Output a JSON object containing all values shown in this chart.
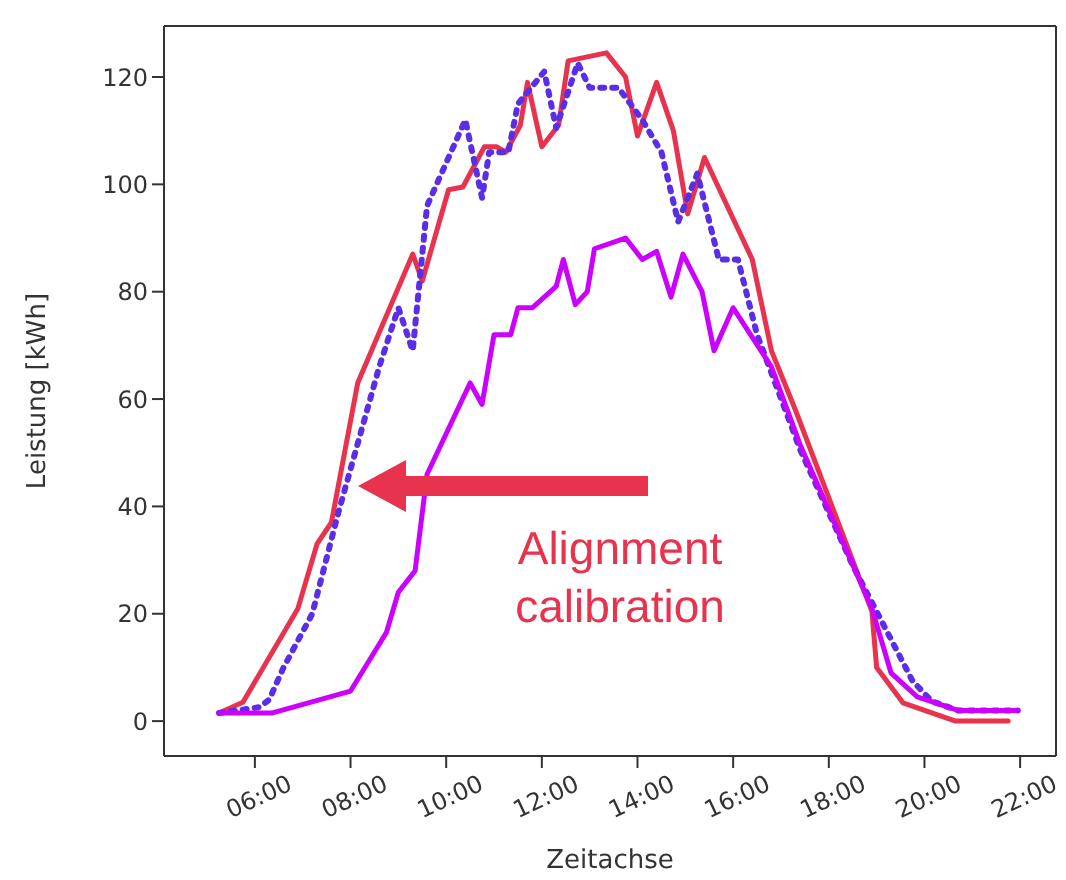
{
  "chart_data": {
    "type": "line",
    "xlabel": "Zeitachse",
    "ylabel": "Leistung [kWh]",
    "xlim": [
      4.1,
      22.75
    ],
    "ylim": [
      -6.5,
      129.5
    ],
    "xticks": [
      {
        "value": 6,
        "label": "06:00"
      },
      {
        "value": 8,
        "label": "08:00"
      },
      {
        "value": 10,
        "label": "10:00"
      },
      {
        "value": 12,
        "label": "12:00"
      },
      {
        "value": 14,
        "label": "14:00"
      },
      {
        "value": 16,
        "label": "16:00"
      },
      {
        "value": 18,
        "label": "18:00"
      },
      {
        "value": 20,
        "label": "20:00"
      },
      {
        "value": 22,
        "label": "22:00"
      }
    ],
    "yticks": [
      0,
      20,
      40,
      60,
      80,
      100,
      120
    ],
    "marker": "none",
    "series": [
      {
        "color": "#e8334f",
        "line_style": "solid",
        "x": [
          5.25,
          5.75,
          6.9,
          7.3,
          7.6,
          8.15,
          9.3,
          9.5,
          10.05,
          10.35,
          10.8,
          11.05,
          11.25,
          11.55,
          11.7,
          12.0,
          12.35,
          12.55,
          13.35,
          13.75,
          14.0,
          14.4,
          14.75,
          15.05,
          15.4,
          16.4,
          16.8,
          17.3,
          18.9,
          19.0,
          19.55,
          20.65,
          21.75
        ],
        "values": [
          1.5,
          3.5,
          21,
          33,
          37,
          63,
          87,
          82,
          99,
          99.5,
          107,
          107,
          106,
          111,
          119,
          107,
          111,
          123,
          124.5,
          120,
          109,
          119,
          110,
          94.5,
          105,
          86,
          69,
          58,
          20.5,
          10,
          3.4,
          0,
          0
        ]
      },
      {
        "color": "#5a2ee6",
        "line_style": "dotted",
        "x": [
          5.25,
          6.1,
          6.3,
          6.6,
          7.2,
          7.75,
          8.6,
          9.0,
          9.3,
          9.6,
          10.4,
          10.75,
          10.9,
          11.3,
          11.5,
          12.05,
          12.3,
          12.75,
          13.0,
          13.6,
          14.1,
          14.5,
          14.85,
          15.25,
          15.7,
          16.1,
          16.5,
          17.4,
          18.5,
          19.75,
          20.15,
          20.7,
          21.95
        ],
        "values": [
          1.5,
          2.6,
          4,
          10,
          20,
          39,
          66,
          77,
          69,
          96,
          112,
          97.5,
          106,
          106,
          115,
          121,
          110.5,
          122.6,
          118,
          118,
          112,
          106,
          93,
          102,
          86,
          86,
          72,
          50.6,
          29,
          7.5,
          3.7,
          2,
          2
        ]
      },
      {
        "color": "#cc00ff",
        "line_style": "solid",
        "x": [
          5.25,
          6.35,
          8.0,
          8.75,
          9.0,
          9.35,
          9.6,
          10.5,
          10.75,
          11.0,
          11.35,
          11.5,
          11.8,
          12.3,
          12.45,
          12.7,
          12.95,
          13.1,
          13.75,
          14.1,
          14.4,
          14.7,
          14.95,
          15.35,
          15.6,
          16.0,
          16.8,
          17.4,
          18.9,
          19.3,
          19.85,
          20.7,
          21.95
        ],
        "values": [
          1.5,
          1.5,
          5.6,
          16.5,
          24,
          28,
          46,
          63,
          59,
          72,
          72,
          77,
          77,
          81,
          86,
          77.6,
          80,
          88,
          90,
          86,
          87.5,
          79,
          87,
          80,
          69,
          77,
          66,
          51.5,
          21,
          9,
          4.5,
          2,
          2
        ]
      }
    ],
    "annotations": [
      "Alignment\ncalibration"
    ]
  }
}
